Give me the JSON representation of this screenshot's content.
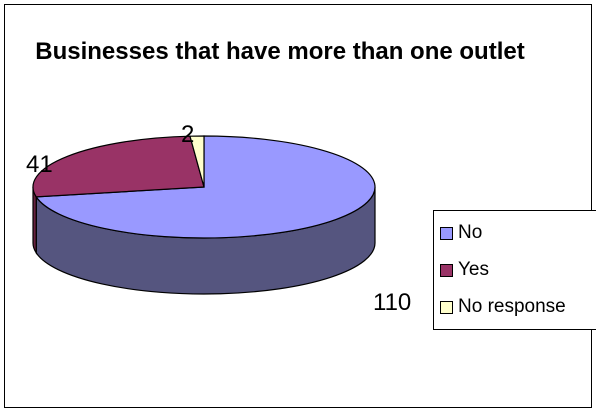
{
  "chart_data": {
    "type": "pie",
    "title": "Businesses that have more than one outlet",
    "categories": [
      "No",
      "Yes",
      "No response"
    ],
    "values": [
      110,
      41,
      2
    ],
    "colors": [
      "#9999ff",
      "#993366",
      "#ffffcc"
    ],
    "side_colors": [
      "#55557f",
      "#66223f",
      "#aaaa88"
    ],
    "data_labels": [
      "110",
      "41",
      "2"
    ],
    "legend_position": "right",
    "three_d": true
  }
}
